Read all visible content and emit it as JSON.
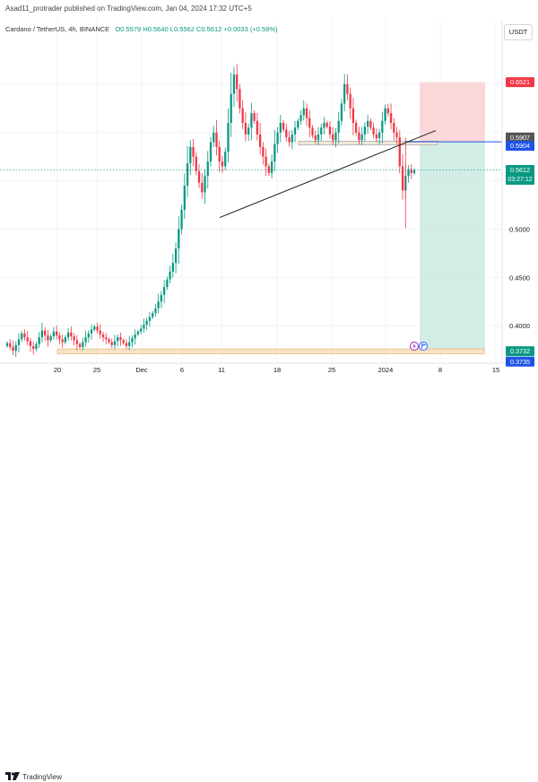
{
  "header": {
    "publisher": "Asad11_protrader published on TradingView.com, Jan 04, 2024 17:32 UTC+5"
  },
  "legend": {
    "symbol": "Cardano / TetherUS, 4h, BINANCE",
    "open": "O0.5579",
    "high": "H0.5640",
    "low": "L0.5562",
    "close": "C0.5612",
    "change": "+0.0033 (+0.59%)"
  },
  "currency": "USDT",
  "footer": {
    "brand": "TradingView"
  },
  "colors": {
    "up": "#089981",
    "down": "#f23645",
    "stop": "#fad4d6",
    "target": "#cdebe3",
    "support": "#f8e3c4",
    "entry": "#1e53e5"
  },
  "chart_data": {
    "type": "candlestick",
    "ylim": [
      0.364,
      0.7
    ],
    "x_tick_labels": [
      "20",
      "25",
      "Dec",
      "6",
      "11",
      "18",
      "25",
      "2024",
      "8",
      "15"
    ],
    "y_tick_labels": [
      "0.4000",
      "0.4500",
      "0.5000"
    ],
    "price_labels": [
      {
        "id": "stop-loss",
        "value": "0.6521",
        "color": "#f23645"
      },
      {
        "id": "high-line",
        "value": "0.5907",
        "color": "#555555"
      },
      {
        "id": "entry",
        "value": "0.5904",
        "color": "#1e53e5"
      },
      {
        "id": "last-price",
        "value": "0.5612",
        "sub": "03:27:12",
        "color": "#089981"
      },
      {
        "id": "take-profit",
        "value": "0.3732",
        "color": "#089981"
      },
      {
        "id": "lower",
        "value": "0.3735",
        "color": "#1e53e5"
      }
    ],
    "price_series": [
      0.382,
      0.378,
      0.374,
      0.38,
      0.386,
      0.392,
      0.388,
      0.384,
      0.379,
      0.376,
      0.381,
      0.388,
      0.395,
      0.39,
      0.385,
      0.389,
      0.394,
      0.39,
      0.386,
      0.383,
      0.388,
      0.393,
      0.389,
      0.385,
      0.381,
      0.378,
      0.383,
      0.388,
      0.392,
      0.396,
      0.399,
      0.395,
      0.391,
      0.388,
      0.386,
      0.383,
      0.38,
      0.384,
      0.388,
      0.385,
      0.382,
      0.379,
      0.383,
      0.387,
      0.391,
      0.394,
      0.397,
      0.401,
      0.405,
      0.409,
      0.413,
      0.418,
      0.425,
      0.432,
      0.44,
      0.448,
      0.456,
      0.465,
      0.48,
      0.5,
      0.52,
      0.545,
      0.568,
      0.585,
      0.575,
      0.56,
      0.548,
      0.538,
      0.555,
      0.57,
      0.59,
      0.6,
      0.585,
      0.57,
      0.565,
      0.58,
      0.61,
      0.64,
      0.66,
      0.645,
      0.625,
      0.61,
      0.598,
      0.605,
      0.62,
      0.612,
      0.598,
      0.585,
      0.575,
      0.565,
      0.558,
      0.57,
      0.588,
      0.6,
      0.61,
      0.603,
      0.595,
      0.59,
      0.598,
      0.605,
      0.612,
      0.618,
      0.625,
      0.615,
      0.605,
      0.597,
      0.592,
      0.598,
      0.605,
      0.61,
      0.606,
      0.598,
      0.592,
      0.6,
      0.612,
      0.63,
      0.65,
      0.64,
      0.625,
      0.61,
      0.6,
      0.592,
      0.598,
      0.606,
      0.612,
      0.605,
      0.598,
      0.594,
      0.6,
      0.612,
      0.625,
      0.62,
      0.61,
      0.6,
      0.595,
      0.565,
      0.54,
      0.555,
      0.562,
      0.558,
      0.561
    ],
    "drawings": {
      "trendline": {
        "from": [
          0,
          0.512
        ],
        "to": [
          1,
          0.602
        ]
      },
      "support_zone": [
        0.371,
        0.376
      ],
      "resistance_zone": [
        0.587,
        0.591
      ]
    }
  }
}
